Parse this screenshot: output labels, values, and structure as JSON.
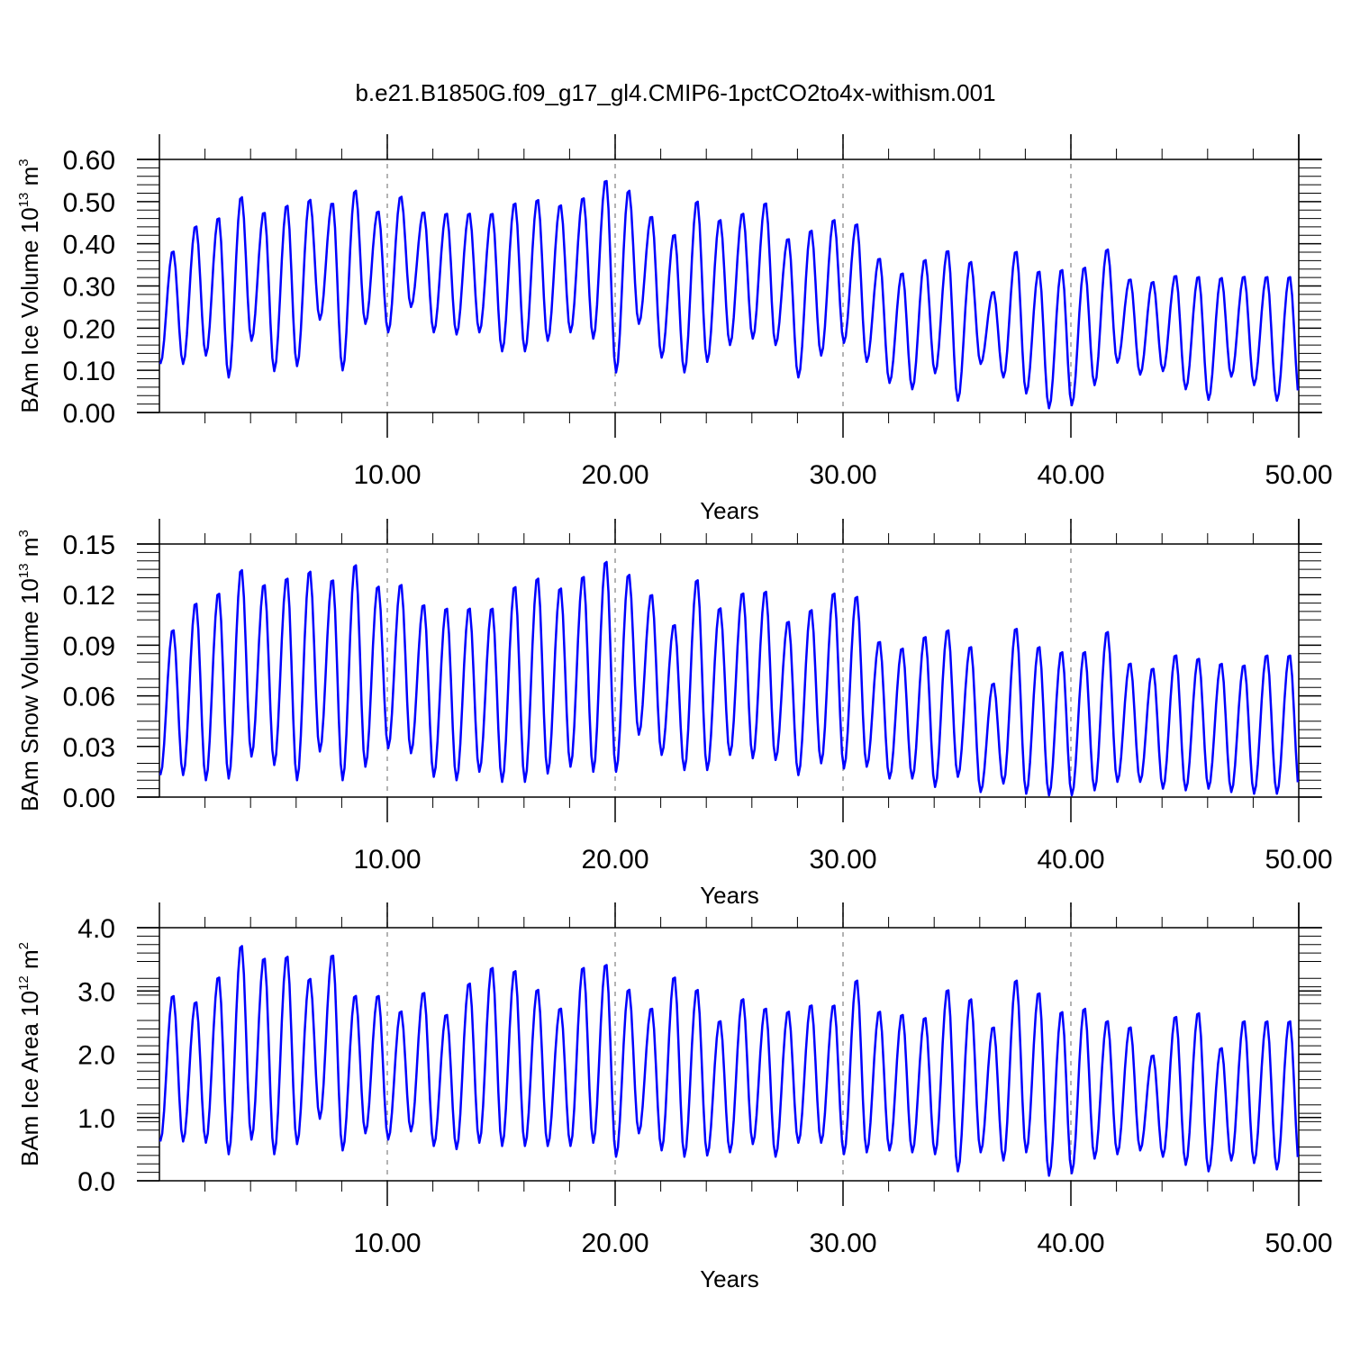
{
  "page": {
    "title": "b.e21.B1850G.f09_g17_gl4.CMIP6-1pctCO2to4x-withism.001"
  },
  "colors": {
    "line": "#0000ff",
    "axes": "#000000",
    "refline": "#9a9a9a",
    "background": "#ffffff"
  },
  "chart_data": [
    {
      "type": "line",
      "id": "ice-volume",
      "title": "",
      "xlabel": "Years",
      "ylabel": {
        "text": "BAm Ice Volume 10",
        "exponent": "13",
        "unit": " m",
        "unit_exponent": "3"
      },
      "xlim": [
        0,
        50
      ],
      "ylim": [
        0,
        0.6
      ],
      "xticks": [
        10,
        20,
        30,
        40,
        50
      ],
      "xtick_labels": [
        "10.00",
        "20.00",
        "30.00",
        "40.00",
        "50.00"
      ],
      "yticks": [
        0,
        0.1,
        0.2,
        0.3,
        0.4,
        0.5,
        0.6
      ],
      "ytick_labels": [
        "0.00",
        "0.10",
        "0.20",
        "0.30",
        "0.40",
        "0.50",
        "0.60"
      ],
      "reference_lines_x": [
        10,
        20,
        30,
        40
      ],
      "grid": false,
      "series": [
        {
          "sampling": "annual max and min (monthly series, seasonal cycle)",
          "annual_max": [
            0.385,
            0.445,
            0.465,
            0.515,
            0.478,
            0.495,
            0.508,
            0.5,
            0.53,
            0.48,
            0.515,
            0.478,
            0.475,
            0.475,
            0.475,
            0.5,
            0.508,
            0.495,
            0.512,
            0.555,
            0.53,
            0.468,
            0.425,
            0.505,
            0.46,
            0.475,
            0.5,
            0.415,
            0.435,
            0.46,
            0.45,
            0.368,
            0.333,
            0.365,
            0.387,
            0.36,
            0.288,
            0.385,
            0.338,
            0.342,
            0.347,
            0.39,
            0.318,
            0.312,
            0.327,
            0.325,
            0.322,
            0.325,
            0.325
          ],
          "annual_min": [
            0.115,
            0.135,
            0.083,
            0.17,
            0.098,
            0.11,
            0.22,
            0.1,
            0.21,
            0.19,
            0.25,
            0.19,
            0.185,
            0.19,
            0.145,
            0.145,
            0.17,
            0.19,
            0.175,
            0.095,
            0.21,
            0.13,
            0.095,
            0.12,
            0.16,
            0.175,
            0.16,
            0.083,
            0.135,
            0.165,
            0.12,
            0.07,
            0.055,
            0.093,
            0.028,
            0.115,
            0.083,
            0.045,
            0.01,
            0.017,
            0.065,
            0.118,
            0.09,
            0.098,
            0.055,
            0.03,
            0.085,
            0.065,
            0.028
          ]
        }
      ]
    },
    {
      "type": "line",
      "id": "snow-volume",
      "title": "",
      "xlabel": "Years",
      "ylabel": {
        "text": "BAm Snow Volume 10",
        "exponent": "13",
        "unit": " m",
        "unit_exponent": "3"
      },
      "xlim": [
        0,
        50
      ],
      "ylim": [
        0,
        0.15
      ],
      "xticks": [
        10,
        20,
        30,
        40,
        50
      ],
      "xtick_labels": [
        "10.00",
        "20.00",
        "30.00",
        "40.00",
        "50.00"
      ],
      "yticks": [
        0,
        0.03,
        0.06,
        0.09,
        0.12,
        0.15
      ],
      "ytick_labels": [
        "0.00",
        "0.03",
        "0.06",
        "0.09",
        "0.12",
        "0.15"
      ],
      "reference_lines_x": [
        10,
        20,
        30,
        40
      ],
      "grid": false,
      "series": [
        {
          "sampling": "annual max and min (monthly series, seasonal cycle)",
          "annual_max": [
            0.1,
            0.116,
            0.122,
            0.136,
            0.127,
            0.131,
            0.135,
            0.13,
            0.139,
            0.126,
            0.127,
            0.115,
            0.113,
            0.113,
            0.113,
            0.126,
            0.131,
            0.125,
            0.132,
            0.141,
            0.133,
            0.121,
            0.103,
            0.13,
            0.113,
            0.122,
            0.123,
            0.105,
            0.112,
            0.122,
            0.12,
            0.093,
            0.089,
            0.096,
            0.1,
            0.09,
            0.068,
            0.101,
            0.09,
            0.087,
            0.087,
            0.099,
            0.08,
            0.077,
            0.085,
            0.083,
            0.08,
            0.079,
            0.085
          ],
          "annual_min": [
            0.013,
            0.01,
            0.011,
            0.024,
            0.019,
            0.01,
            0.027,
            0.01,
            0.018,
            0.029,
            0.026,
            0.012,
            0.01,
            0.015,
            0.009,
            0.009,
            0.014,
            0.018,
            0.015,
            0.015,
            0.037,
            0.025,
            0.016,
            0.016,
            0.025,
            0.023,
            0.022,
            0.013,
            0.02,
            0.017,
            0.018,
            0.011,
            0.011,
            0.006,
            0.012,
            0.003,
            0.008,
            0.002,
            0.001,
            0.001,
            0.004,
            0.009,
            0.009,
            0.005,
            0.004,
            0.005,
            0.003,
            0.002,
            0.002
          ]
        }
      ]
    },
    {
      "type": "line",
      "id": "ice-area",
      "title": "",
      "xlabel": "Years",
      "ylabel": {
        "text": "BAm Ice Area 10",
        "exponent": "12",
        "unit": " m",
        "unit_exponent": "2"
      },
      "xlim": [
        0,
        50
      ],
      "ylim": [
        0,
        4
      ],
      "xticks": [
        10,
        20,
        30,
        40,
        50
      ],
      "xtick_labels": [
        "10.00",
        "20.00",
        "30.00",
        "40.00",
        "50.00"
      ],
      "yticks": [
        0,
        1,
        2,
        3,
        4
      ],
      "ytick_labels": [
        "0.0",
        "1.0",
        "2.0",
        "3.0",
        "4.0"
      ],
      "reference_lines_x": [
        10,
        20,
        30,
        40
      ],
      "grid": false,
      "series": [
        {
          "sampling": "annual max and min (monthly series, seasonal cycle)",
          "annual_max": [
            2.95,
            2.85,
            3.25,
            3.75,
            3.55,
            3.58,
            3.22,
            3.6,
            2.95,
            2.95,
            2.7,
            3.0,
            2.65,
            3.15,
            3.4,
            3.35,
            3.05,
            2.75,
            3.4,
            3.45,
            3.05,
            2.75,
            3.25,
            3.05,
            2.55,
            2.9,
            2.75,
            2.7,
            2.8,
            2.8,
            3.2,
            2.7,
            2.65,
            2.6,
            3.05,
            2.9,
            2.45,
            3.2,
            3.0,
            2.7,
            2.75,
            2.55,
            2.45,
            2.0,
            2.62,
            2.68,
            2.12,
            2.55,
            2.55
          ],
          "annual_min": [
            0.62,
            0.6,
            0.42,
            0.65,
            0.42,
            0.58,
            0.98,
            0.48,
            0.75,
            0.65,
            0.78,
            0.55,
            0.5,
            0.6,
            0.55,
            0.55,
            0.55,
            0.55,
            0.6,
            0.38,
            0.75,
            0.48,
            0.38,
            0.4,
            0.45,
            0.58,
            0.38,
            0.6,
            0.6,
            0.42,
            0.45,
            0.48,
            0.45,
            0.42,
            0.15,
            0.45,
            0.32,
            0.45,
            0.08,
            0.12,
            0.35,
            0.42,
            0.48,
            0.38,
            0.25,
            0.15,
            0.32,
            0.28,
            0.18
          ]
        }
      ]
    }
  ]
}
